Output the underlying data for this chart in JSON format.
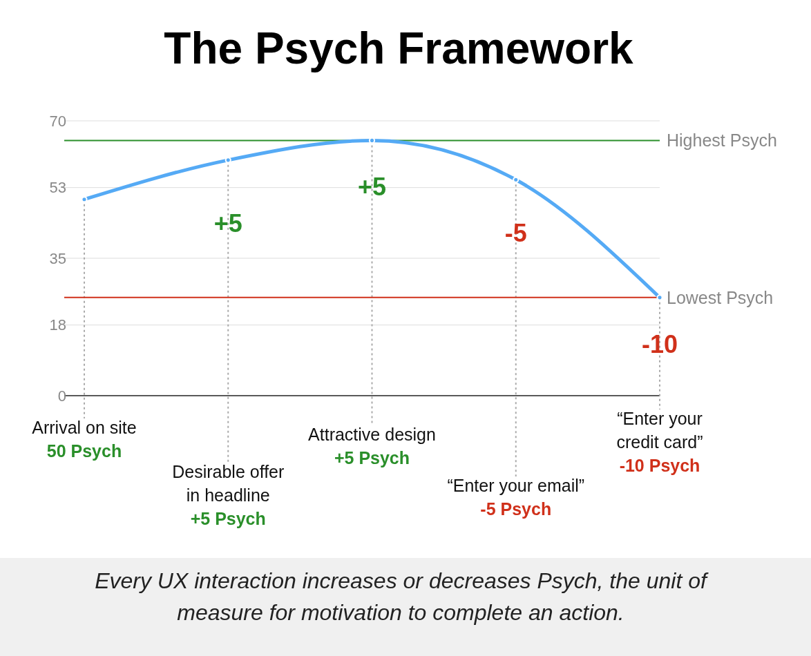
{
  "chart_data": {
    "type": "line",
    "title": "The Psych Framework",
    "categories": [
      "Arrival on site",
      "Desirable offer\nin headline",
      "Attractive design",
      "“Enter your email”",
      "“Enter your\ncredit card”"
    ],
    "series": [
      {
        "color": "#55aaf5",
        "values": [
          50,
          60,
          65,
          55,
          25
        ]
      }
    ],
    "ylim": [
      0,
      70
    ],
    "yticks": [
      0,
      18,
      35,
      53,
      70
    ],
    "grid": true,
    "marker": "circle",
    "ref_lines": [
      {
        "axis": "y",
        "value": 65,
        "label": "Highest Psych",
        "color": "#2a8f2a"
      },
      {
        "axis": "y",
        "value": 25,
        "label": "Lowest Psych",
        "color": "#d0301a"
      }
    ],
    "annotations": [
      "50 Psych",
      "+5 Psych",
      "+5 Psych",
      "-5 Psych",
      "-10 Psych",
      "+5",
      "+5",
      "-5",
      "-10",
      "Every UX interaction increases or decreases Psych, the unit of\nmeasure for motivation to complete an action."
    ]
  }
}
